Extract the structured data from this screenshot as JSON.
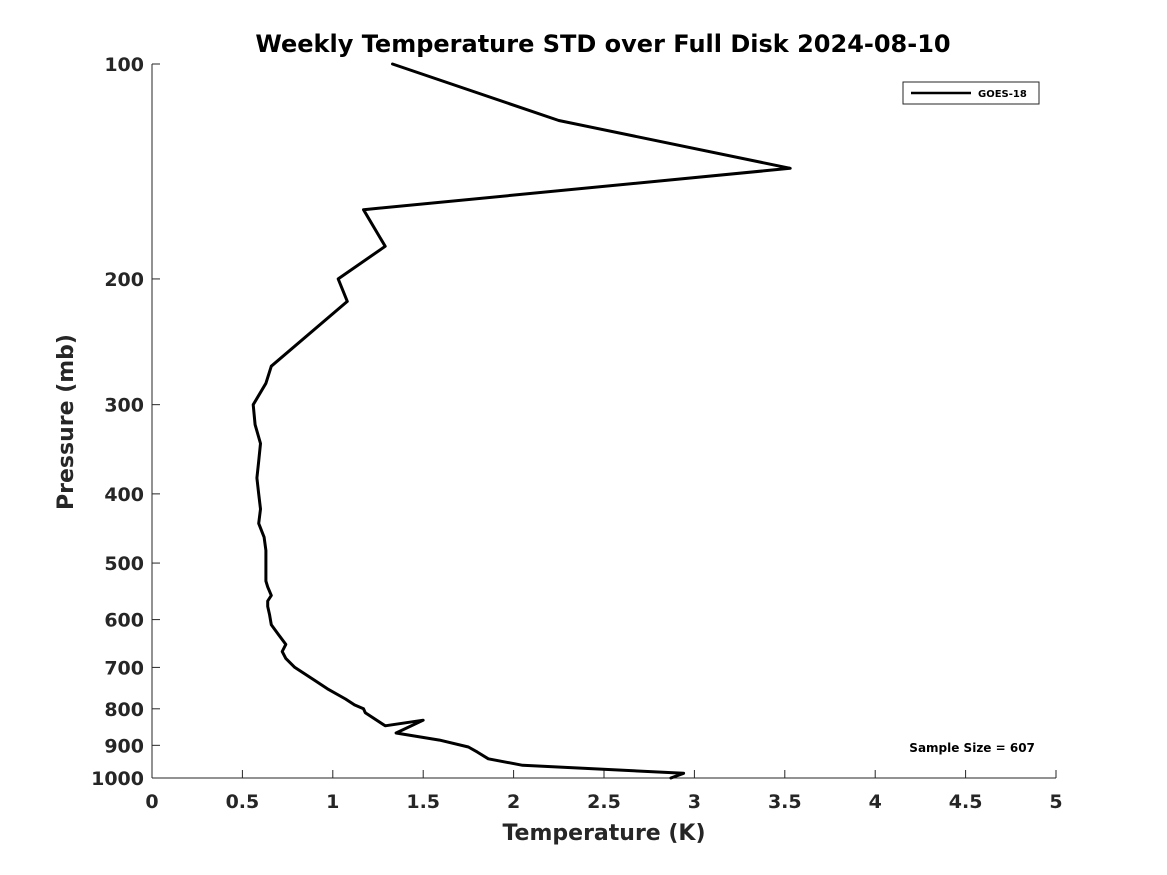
{
  "chart_data": {
    "type": "line",
    "title": "Weekly Temperature STD over Full Disk 2024-08-10",
    "xlabel": "Temperature (K)",
    "ylabel": "Pressure (mb)",
    "xlim": [
      0,
      5
    ],
    "ylim": [
      100,
      1000
    ],
    "y_scale": "log",
    "y_reversed": true,
    "x_ticks": [
      0,
      0.5,
      1,
      1.5,
      2,
      2.5,
      3,
      3.5,
      4,
      4.5,
      5
    ],
    "x_tick_labels": [
      "0",
      "0.5",
      "1",
      "1.5",
      "2",
      "2.5",
      "3",
      "3.5",
      "4",
      "4.5",
      "5"
    ],
    "y_ticks": [
      100,
      200,
      300,
      400,
      500,
      600,
      700,
      800,
      900,
      1000
    ],
    "y_tick_labels": [
      "100",
      "200",
      "300",
      "400",
      "500",
      "600",
      "700",
      "800",
      "900",
      "1000"
    ],
    "grid": false,
    "legend_position": "top-right",
    "series": [
      {
        "name": "GOES-18",
        "color": "#000000",
        "x": [
          1.33,
          2.25,
          3.53,
          1.17,
          1.29,
          1.03,
          1.08,
          0.66,
          0.63,
          0.56,
          0.57,
          0.6,
          0.59,
          0.58,
          0.59,
          0.6,
          0.59,
          0.62,
          0.63,
          0.63,
          0.63,
          0.63,
          0.64,
          0.66,
          0.64,
          0.64,
          0.65,
          0.66,
          0.7,
          0.74,
          0.72,
          0.74,
          0.79,
          0.9,
          0.97,
          1.07,
          1.12,
          1.17,
          1.18,
          1.29,
          1.5,
          1.35,
          1.59,
          1.75,
          1.8,
          1.86,
          2.05,
          2.94,
          2.87
        ],
        "y": [
          100,
          120,
          140,
          160,
          180,
          200,
          215,
          265,
          280,
          300,
          320,
          340,
          360,
          380,
          400,
          420,
          440,
          460,
          480,
          500,
          520,
          530,
          540,
          555,
          565,
          575,
          590,
          610,
          630,
          650,
          665,
          680,
          700,
          730,
          750,
          775,
          790,
          800,
          810,
          845,
          830,
          865,
          885,
          905,
          920,
          940,
          960,
          985,
          1000
        ]
      }
    ],
    "annotations": [
      {
        "text": "Sample Size = 607",
        "x": 4.9,
        "y": 905
      }
    ]
  }
}
